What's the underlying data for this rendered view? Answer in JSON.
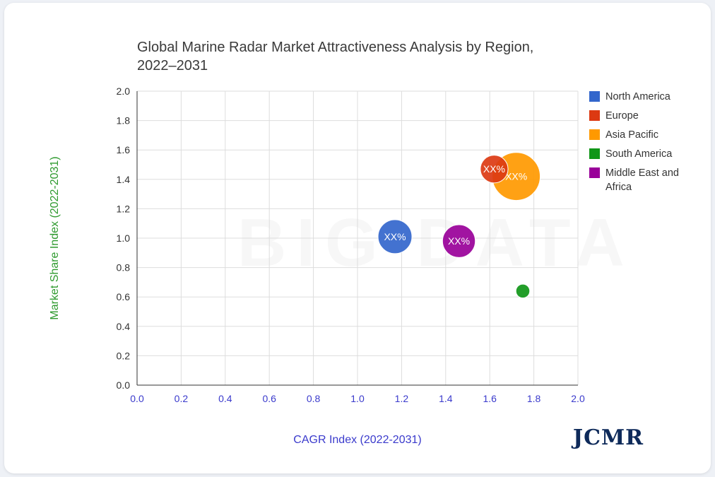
{
  "chart_data": {
    "type": "scatter",
    "title": "Global Marine Radar Market Attractiveness Analysis by Region, 2022–2031",
    "xlabel": "CAGR Index (2022-2031)",
    "ylabel": "Market Share Index (2022-2031)",
    "xlim": [
      0.0,
      2.0
    ],
    "ylim": [
      0.0,
      2.0
    ],
    "x_ticks": [
      "0.0",
      "0.2",
      "0.4",
      "0.6",
      "0.8",
      "1.0",
      "1.2",
      "1.4",
      "1.6",
      "1.8",
      "2.0"
    ],
    "y_ticks": [
      "0.0",
      "0.2",
      "0.4",
      "0.6",
      "0.8",
      "1.0",
      "1.2",
      "1.4",
      "1.6",
      "1.8",
      "2.0"
    ],
    "grid": true,
    "legend_position": "right",
    "series": [
      {
        "name": "North America",
        "color": "#3366cc",
        "x": 1.17,
        "y": 1.01,
        "size": 3,
        "label": "XX%"
      },
      {
        "name": "Europe",
        "color": "#dc3912",
        "x": 1.62,
        "y": 1.47,
        "size": 2,
        "label": "XX%"
      },
      {
        "name": "Asia Pacific",
        "color": "#ff9900",
        "x": 1.72,
        "y": 1.42,
        "size": 6,
        "label": "XX%"
      },
      {
        "name": "South America",
        "color": "#109618",
        "x": 1.75,
        "y": 0.64,
        "size": 0.5,
        "label": ""
      },
      {
        "name": "Middle East and Africa",
        "color": "#990099",
        "x": 1.46,
        "y": 0.98,
        "size": 2.8,
        "label": "XX%"
      }
    ]
  },
  "logo": {
    "text": "JCMR"
  },
  "colors": {
    "x_axis_text": "#3a3acc",
    "y_axis_title": "#2e9a2e",
    "grid": "#dddddd"
  }
}
